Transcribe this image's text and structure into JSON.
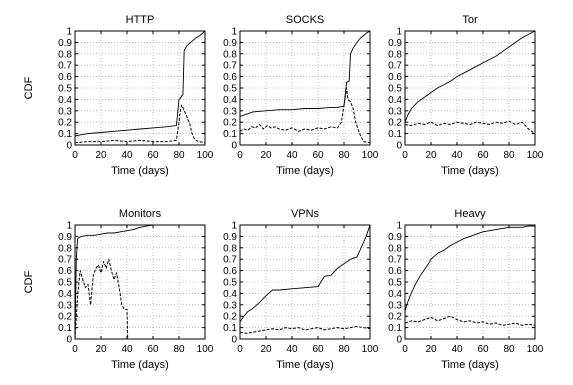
{
  "chart_data": [
    {
      "type": "line",
      "title": "HTTP",
      "xlabel": "Time (days)",
      "ylabel": "CDF",
      "xlim": [
        0,
        100
      ],
      "ylim": [
        0,
        1
      ],
      "grid": true,
      "xticks": [
        "0",
        "20",
        "40",
        "60",
        "80",
        "100"
      ],
      "yticks": [
        "0",
        "0.1",
        "0.2",
        "0.3",
        "0.4",
        "0.5",
        "0.6",
        "0.7",
        "0.8",
        "0.9",
        "1"
      ],
      "series": [
        {
          "style": "solid",
          "x": [
            0,
            5,
            10,
            20,
            30,
            40,
            50,
            60,
            70,
            78,
            80,
            81,
            82,
            83,
            84,
            85,
            86,
            88,
            90,
            93,
            96,
            98,
            100
          ],
          "values": [
            0.08,
            0.09,
            0.1,
            0.11,
            0.12,
            0.13,
            0.14,
            0.15,
            0.16,
            0.17,
            0.4,
            0.41,
            0.43,
            0.44,
            0.83,
            0.85,
            0.87,
            0.89,
            0.91,
            0.94,
            0.96,
            0.98,
            1.0
          ]
        },
        {
          "style": "dashed",
          "x": [
            0,
            10,
            20,
            30,
            40,
            50,
            60,
            70,
            78,
            80,
            81,
            82,
            83,
            84,
            85,
            86,
            87,
            88,
            89,
            90,
            92,
            95,
            100
          ],
          "values": [
            0.02,
            0.03,
            0.03,
            0.04,
            0.03,
            0.04,
            0.03,
            0.03,
            0.04,
            0.2,
            0.3,
            0.35,
            0.33,
            0.3,
            0.28,
            0.25,
            0.22,
            0.2,
            0.15,
            0.1,
            0.05,
            0.03,
            0.02
          ]
        }
      ]
    },
    {
      "type": "line",
      "title": "SOCKS",
      "xlabel": "Time (days)",
      "ylabel": "",
      "xlim": [
        0,
        100
      ],
      "ylim": [
        0,
        1
      ],
      "grid": true,
      "xticks": [
        "0",
        "20",
        "40",
        "60",
        "80",
        "100"
      ],
      "yticks": [
        "0",
        "0.1",
        "0.2",
        "0.3",
        "0.4",
        "0.5",
        "0.6",
        "0.7",
        "0.8",
        "0.9",
        "1"
      ],
      "series": [
        {
          "style": "solid",
          "x": [
            0,
            5,
            10,
            20,
            30,
            40,
            50,
            60,
            70,
            75,
            80,
            82,
            84,
            85,
            87,
            90,
            92,
            95,
            97,
            100
          ],
          "values": [
            0.25,
            0.27,
            0.29,
            0.3,
            0.31,
            0.31,
            0.32,
            0.32,
            0.33,
            0.33,
            0.34,
            0.55,
            0.56,
            0.8,
            0.85,
            0.9,
            0.93,
            0.96,
            0.98,
            1.0
          ]
        },
        {
          "style": "dashed",
          "x": [
            0,
            3,
            6,
            9,
            12,
            15,
            18,
            21,
            24,
            27,
            30,
            35,
            40,
            45,
            50,
            55,
            60,
            65,
            70,
            75,
            78,
            80,
            82,
            83,
            85,
            87,
            89,
            92,
            95,
            100
          ],
          "values": [
            0.12,
            0.14,
            0.13,
            0.16,
            0.15,
            0.18,
            0.14,
            0.17,
            0.15,
            0.16,
            0.14,
            0.13,
            0.15,
            0.12,
            0.14,
            0.13,
            0.15,
            0.14,
            0.16,
            0.15,
            0.2,
            0.35,
            0.5,
            0.4,
            0.38,
            0.32,
            0.2,
            0.1,
            0.03,
            0.02
          ]
        }
      ]
    },
    {
      "type": "line",
      "title": "Tor",
      "xlabel": "Time (days)",
      "ylabel": "",
      "xlim": [
        0,
        100
      ],
      "ylim": [
        0,
        1
      ],
      "grid": true,
      "xticks": [
        "0",
        "20",
        "40",
        "60",
        "80",
        "100"
      ],
      "yticks": [
        "0",
        "0.1",
        "0.2",
        "0.3",
        "0.4",
        "0.5",
        "0.6",
        "0.7",
        "0.8",
        "0.9",
        "1"
      ],
      "series": [
        {
          "style": "solid",
          "x": [
            0,
            2,
            5,
            10,
            15,
            20,
            25,
            30,
            35,
            40,
            45,
            50,
            55,
            60,
            65,
            70,
            75,
            80,
            85,
            90,
            95,
            100
          ],
          "values": [
            0.2,
            0.26,
            0.32,
            0.38,
            0.42,
            0.46,
            0.5,
            0.53,
            0.56,
            0.6,
            0.63,
            0.66,
            0.69,
            0.72,
            0.75,
            0.78,
            0.82,
            0.86,
            0.9,
            0.94,
            0.97,
            1.0
          ]
        },
        {
          "style": "dashed",
          "x": [
            0,
            5,
            10,
            15,
            20,
            25,
            30,
            35,
            40,
            45,
            50,
            55,
            60,
            65,
            70,
            75,
            80,
            85,
            90,
            95,
            100
          ],
          "values": [
            0.18,
            0.17,
            0.19,
            0.18,
            0.2,
            0.17,
            0.19,
            0.18,
            0.2,
            0.19,
            0.18,
            0.2,
            0.19,
            0.18,
            0.2,
            0.19,
            0.21,
            0.18,
            0.2,
            0.14,
            0.1
          ]
        }
      ]
    },
    {
      "type": "line",
      "title": "Monitors",
      "xlabel": "Time (days)",
      "ylabel": "CDF",
      "xlim": [
        0,
        100
      ],
      "ylim": [
        0,
        1
      ],
      "grid": true,
      "xticks": [
        "0",
        "20",
        "40",
        "60",
        "80",
        "100"
      ],
      "yticks": [
        "0",
        "0.1",
        "0.2",
        "0.3",
        "0.4",
        "0.5",
        "0.6",
        "0.7",
        "0.8",
        "0.9",
        "1"
      ],
      "series": [
        {
          "style": "solid",
          "x": [
            0,
            1,
            2,
            3,
            5,
            10,
            15,
            20,
            25,
            30,
            35,
            40,
            45,
            50,
            55,
            60,
            80,
            100
          ],
          "values": [
            0.0,
            0.7,
            0.88,
            0.89,
            0.9,
            0.91,
            0.91,
            0.92,
            0.93,
            0.93,
            0.94,
            0.95,
            0.96,
            0.98,
            0.99,
            1.0,
            1.0,
            1.0
          ]
        },
        {
          "style": "dashed",
          "x": [
            0,
            2,
            4,
            6,
            8,
            10,
            12,
            14,
            16,
            18,
            20,
            22,
            24,
            26,
            28,
            30,
            32,
            34,
            36,
            38,
            40,
            40.5,
            100
          ],
          "values": [
            0.0,
            0.38,
            0.6,
            0.52,
            0.45,
            0.48,
            0.3,
            0.55,
            0.62,
            0.65,
            0.58,
            0.68,
            0.62,
            0.7,
            0.6,
            0.52,
            0.58,
            0.45,
            0.3,
            0.26,
            0.26,
            0.0,
            0.0
          ]
        }
      ]
    },
    {
      "type": "line",
      "title": "VPNs",
      "xlabel": "Time (days)",
      "ylabel": "",
      "xlim": [
        0,
        100
      ],
      "ylim": [
        0,
        1
      ],
      "grid": true,
      "xticks": [
        "0",
        "20",
        "40",
        "60",
        "80",
        "100"
      ],
      "yticks": [
        "0",
        "0.1",
        "0.2",
        "0.3",
        "0.4",
        "0.5",
        "0.6",
        "0.7",
        "0.8",
        "0.9",
        "1"
      ],
      "series": [
        {
          "style": "solid",
          "x": [
            0,
            3,
            6,
            10,
            15,
            20,
            25,
            30,
            40,
            50,
            60,
            65,
            70,
            75,
            80,
            85,
            90,
            94,
            97,
            100
          ],
          "values": [
            0.15,
            0.2,
            0.24,
            0.27,
            0.32,
            0.38,
            0.43,
            0.43,
            0.44,
            0.45,
            0.46,
            0.55,
            0.56,
            0.62,
            0.66,
            0.7,
            0.72,
            0.82,
            0.9,
            1.0
          ]
        },
        {
          "style": "dashed",
          "x": [
            0,
            5,
            10,
            15,
            20,
            25,
            30,
            35,
            40,
            45,
            50,
            55,
            60,
            65,
            70,
            75,
            80,
            85,
            90,
            95,
            100
          ],
          "values": [
            0.06,
            0.05,
            0.06,
            0.07,
            0.08,
            0.09,
            0.08,
            0.1,
            0.09,
            0.1,
            0.08,
            0.09,
            0.1,
            0.08,
            0.09,
            0.1,
            0.09,
            0.1,
            0.11,
            0.1,
            0.09
          ]
        }
      ]
    },
    {
      "type": "line",
      "title": "Heavy",
      "xlabel": "Time (days)",
      "ylabel": "",
      "xlim": [
        0,
        100
      ],
      "ylim": [
        0,
        1
      ],
      "grid": true,
      "xticks": [
        "0",
        "20",
        "40",
        "60",
        "80",
        "100"
      ],
      "yticks": [
        "0",
        "0.1",
        "0.2",
        "0.3",
        "0.4",
        "0.5",
        "0.6",
        "0.7",
        "0.8",
        "0.9",
        "1"
      ],
      "series": [
        {
          "style": "solid",
          "x": [
            0,
            2,
            4,
            6,
            8,
            10,
            12,
            15,
            18,
            20,
            25,
            30,
            35,
            40,
            45,
            50,
            55,
            60,
            65,
            70,
            75,
            80,
            85,
            90,
            95,
            100
          ],
          "values": [
            0.25,
            0.32,
            0.38,
            0.43,
            0.48,
            0.52,
            0.56,
            0.61,
            0.66,
            0.7,
            0.75,
            0.78,
            0.82,
            0.85,
            0.88,
            0.9,
            0.92,
            0.94,
            0.95,
            0.96,
            0.97,
            0.98,
            0.98,
            0.98,
            0.99,
            0.99
          ]
        },
        {
          "style": "dashed",
          "x": [
            0,
            5,
            10,
            15,
            20,
            25,
            30,
            35,
            40,
            45,
            50,
            55,
            60,
            65,
            70,
            75,
            80,
            85,
            90,
            95,
            100
          ],
          "values": [
            0.14,
            0.16,
            0.15,
            0.17,
            0.19,
            0.16,
            0.18,
            0.2,
            0.17,
            0.15,
            0.16,
            0.14,
            0.15,
            0.13,
            0.14,
            0.12,
            0.13,
            0.14,
            0.12,
            0.13,
            0.12
          ]
        }
      ]
    }
  ]
}
